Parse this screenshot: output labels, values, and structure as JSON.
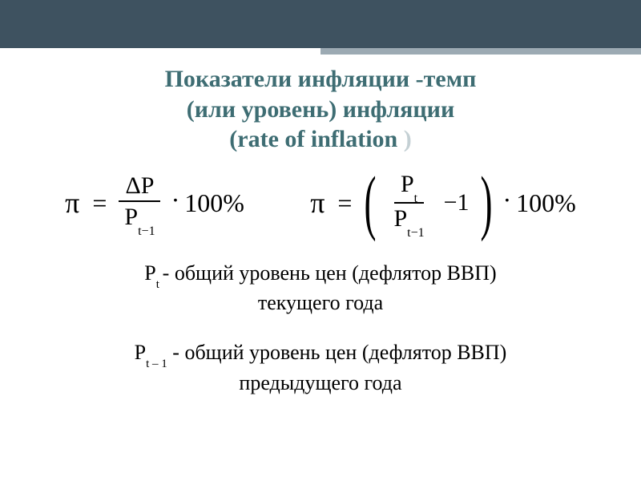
{
  "header": {
    "bar_color": "#3e5260",
    "accent_color": "#9caab3"
  },
  "title": {
    "line1": "Показатели инфляции -темп",
    "line2": "(или уровень) инфляции",
    "line3_open": "(",
    "line3_text": "rate of inflation ",
    "line3_close": ")",
    "color": "#3e6d73",
    "fontsize": 30
  },
  "formula1": {
    "pi": "π",
    "eq": "=",
    "numerator": "ΔP",
    "denom_base": "P",
    "denom_sub": "t−1",
    "dot": "·",
    "hundred": "100%"
  },
  "formula2": {
    "pi": "π",
    "eq": "=",
    "num_base": "P",
    "num_sub": "t",
    "den_base": "P",
    "den_sub": "t−1",
    "minus_one": "−1",
    "dot": "·",
    "hundred": "100%"
  },
  "def1": {
    "label_base": "P",
    "label_sub": "t ",
    "text1": " - общий уровень цен (дефлятор ВВП)",
    "text2": "текущего года"
  },
  "def2": {
    "label_base": "P",
    "label_sub": "t – 1",
    "text1": " - общий уровень цен (дефлятор ВВП)",
    "text2": "предыдущего года"
  }
}
